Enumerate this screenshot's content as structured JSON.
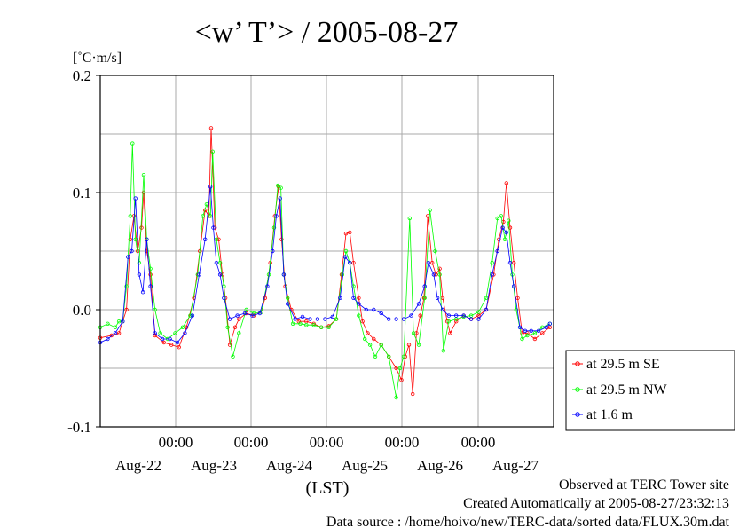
{
  "chart_data": {
    "type": "line",
    "title": "<w’ T’> / 2005-08-27",
    "ylabel": "[˚C·m/s]",
    "xlabel": "(LST)",
    "ylim": [
      -0.1,
      0.2
    ],
    "y_ticks": [
      "0.2",
      "0.1",
      "0.0",
      "-0.1"
    ],
    "x_time_ticks": [
      "00:00",
      "00:00",
      "00:00",
      "00:00",
      "00:00"
    ],
    "x_date_labels": [
      "Aug-22",
      "Aug-23",
      "Aug-24",
      "Aug-25",
      "Aug-26",
      "Aug-27"
    ],
    "x_unit": "day_offset_from_Aug-21_00:00_LST",
    "xlim": [
      1.05,
      7.1
    ],
    "grid": true,
    "legend_position": "right",
    "series": [
      {
        "name": "at 29.5 m SE",
        "color": "#ff0000",
        "points": [
          [
            1.05,
            -0.024
          ],
          [
            1.2,
            -0.022
          ],
          [
            1.3,
            -0.02
          ],
          [
            1.35,
            -0.01
          ],
          [
            1.4,
            0.0
          ],
          [
            1.45,
            0.06
          ],
          [
            1.5,
            0.08
          ],
          [
            1.55,
            0.05
          ],
          [
            1.6,
            0.07
          ],
          [
            1.63,
            0.1
          ],
          [
            1.67,
            0.05
          ],
          [
            1.72,
            0.03
          ],
          [
            1.78,
            -0.022
          ],
          [
            1.9,
            -0.028
          ],
          [
            2.0,
            -0.03
          ],
          [
            2.1,
            -0.032
          ],
          [
            2.2,
            -0.015
          ],
          [
            2.3,
            0.01
          ],
          [
            2.38,
            0.05
          ],
          [
            2.45,
            0.085
          ],
          [
            2.5,
            0.08
          ],
          [
            2.53,
            0.155
          ],
          [
            2.58,
            0.07
          ],
          [
            2.63,
            0.06
          ],
          [
            2.68,
            0.03
          ],
          [
            2.72,
            0.01
          ],
          [
            2.78,
            -0.03
          ],
          [
            2.85,
            -0.015
          ],
          [
            2.9,
            -0.008
          ],
          [
            3.0,
            -0.003
          ],
          [
            3.1,
            -0.005
          ],
          [
            3.2,
            -0.002
          ],
          [
            3.25,
            0.01
          ],
          [
            3.32,
            0.04
          ],
          [
            3.38,
            0.08
          ],
          [
            3.43,
            0.105
          ],
          [
            3.47,
            0.06
          ],
          [
            3.52,
            0.02
          ],
          [
            3.6,
            0.0
          ],
          [
            3.7,
            -0.01
          ],
          [
            3.8,
            -0.01
          ],
          [
            3.9,
            -0.012
          ],
          [
            4.0,
            -0.015
          ],
          [
            4.1,
            -0.014
          ],
          [
            4.2,
            -0.008
          ],
          [
            4.27,
            0.03
          ],
          [
            4.33,
            0.065
          ],
          [
            4.38,
            0.066
          ],
          [
            4.43,
            0.04
          ],
          [
            4.5,
            0.01
          ],
          [
            4.55,
            -0.01
          ],
          [
            4.62,
            -0.02
          ],
          [
            4.7,
            -0.025
          ],
          [
            4.8,
            -0.03
          ],
          [
            4.9,
            -0.04
          ],
          [
            5.0,
            -0.05
          ],
          [
            5.07,
            -0.06
          ],
          [
            5.12,
            -0.04
          ],
          [
            5.17,
            -0.03
          ],
          [
            5.22,
            -0.072
          ],
          [
            5.27,
            -0.02
          ],
          [
            5.32,
            -0.005
          ],
          [
            5.37,
            0.01
          ],
          [
            5.42,
            0.08
          ],
          [
            5.48,
            0.04
          ],
          [
            5.53,
            0.03
          ],
          [
            5.58,
            0.035
          ],
          [
            5.62,
            0.01
          ],
          [
            5.68,
            -0.01
          ],
          [
            5.72,
            -0.02
          ],
          [
            5.8,
            -0.01
          ],
          [
            5.9,
            -0.005
          ],
          [
            6.0,
            -0.008
          ],
          [
            6.1,
            -0.005
          ],
          [
            6.2,
            0.0
          ],
          [
            6.3,
            0.03
          ],
          [
            6.37,
            0.06
          ],
          [
            6.43,
            0.075
          ],
          [
            6.47,
            0.108
          ],
          [
            6.52,
            0.07
          ],
          [
            6.57,
            0.04
          ],
          [
            6.62,
            0.01
          ],
          [
            6.68,
            -0.02
          ],
          [
            6.75,
            -0.02
          ],
          [
            6.85,
            -0.025
          ],
          [
            6.95,
            -0.02
          ],
          [
            7.05,
            -0.015
          ]
        ]
      },
      {
        "name": "at 29.5 m NW",
        "color": "#00ff00",
        "points": [
          [
            1.05,
            -0.015
          ],
          [
            1.15,
            -0.012
          ],
          [
            1.25,
            -0.015
          ],
          [
            1.3,
            -0.01
          ],
          [
            1.35,
            -0.01
          ],
          [
            1.4,
            0.02
          ],
          [
            1.45,
            0.08
          ],
          [
            1.48,
            0.142
          ],
          [
            1.52,
            0.06
          ],
          [
            1.57,
            0.04
          ],
          [
            1.63,
            0.115
          ],
          [
            1.67,
            0.06
          ],
          [
            1.72,
            0.035
          ],
          [
            1.78,
            0.0
          ],
          [
            1.85,
            -0.02
          ],
          [
            1.95,
            -0.025
          ],
          [
            2.05,
            -0.02
          ],
          [
            2.15,
            -0.015
          ],
          [
            2.25,
            -0.005
          ],
          [
            2.35,
            0.03
          ],
          [
            2.42,
            0.08
          ],
          [
            2.47,
            0.09
          ],
          [
            2.52,
            0.08
          ],
          [
            2.55,
            0.135
          ],
          [
            2.6,
            0.06
          ],
          [
            2.65,
            0.04
          ],
          [
            2.7,
            0.02
          ],
          [
            2.75,
            -0.015
          ],
          [
            2.82,
            -0.04
          ],
          [
            2.9,
            -0.02
          ],
          [
            3.0,
            0.0
          ],
          [
            3.1,
            -0.003
          ],
          [
            3.2,
            -0.002
          ],
          [
            3.3,
            0.03
          ],
          [
            3.37,
            0.07
          ],
          [
            3.42,
            0.106
          ],
          [
            3.46,
            0.104
          ],
          [
            3.5,
            0.03
          ],
          [
            3.55,
            0.01
          ],
          [
            3.62,
            -0.012
          ],
          [
            3.72,
            -0.012
          ],
          [
            3.8,
            -0.013
          ],
          [
            3.9,
            -0.013
          ],
          [
            4.0,
            -0.015
          ],
          [
            4.1,
            -0.015
          ],
          [
            4.2,
            -0.008
          ],
          [
            4.28,
            0.03
          ],
          [
            4.33,
            0.05
          ],
          [
            4.38,
            0.04
          ],
          [
            4.43,
            0.02
          ],
          [
            4.5,
            -0.005
          ],
          [
            4.58,
            -0.025
          ],
          [
            4.65,
            -0.03
          ],
          [
            4.72,
            -0.04
          ],
          [
            4.8,
            -0.03
          ],
          [
            4.9,
            -0.04
          ],
          [
            5.0,
            -0.075
          ],
          [
            5.05,
            -0.05
          ],
          [
            5.1,
            -0.04
          ],
          [
            5.18,
            0.078
          ],
          [
            5.23,
            -0.02
          ],
          [
            5.3,
            -0.03
          ],
          [
            5.38,
            0.01
          ],
          [
            5.45,
            0.085
          ],
          [
            5.52,
            0.05
          ],
          [
            5.58,
            0.03
          ],
          [
            5.63,
            -0.035
          ],
          [
            5.7,
            -0.01
          ],
          [
            5.8,
            -0.008
          ],
          [
            5.9,
            -0.006
          ],
          [
            6.0,
            -0.005
          ],
          [
            6.1,
            -0.002
          ],
          [
            6.2,
            0.01
          ],
          [
            6.28,
            0.04
          ],
          [
            6.35,
            0.078
          ],
          [
            6.4,
            0.08
          ],
          [
            6.45,
            0.06
          ],
          [
            6.5,
            0.076
          ],
          [
            6.55,
            0.03
          ],
          [
            6.6,
            0.0
          ],
          [
            6.68,
            -0.025
          ],
          [
            6.75,
            -0.022
          ],
          [
            6.85,
            -0.02
          ],
          [
            6.95,
            -0.015
          ],
          [
            7.05,
            -0.012
          ]
        ]
      },
      {
        "name": "at 1.6 m",
        "color": "#0000ff",
        "points": [
          [
            1.05,
            -0.028
          ],
          [
            1.15,
            -0.025
          ],
          [
            1.25,
            -0.02
          ],
          [
            1.35,
            -0.01
          ],
          [
            1.42,
            0.045
          ],
          [
            1.47,
            0.05
          ],
          [
            1.52,
            0.095
          ],
          [
            1.57,
            0.03
          ],
          [
            1.62,
            0.015
          ],
          [
            1.67,
            0.06
          ],
          [
            1.72,
            0.02
          ],
          [
            1.78,
            -0.02
          ],
          [
            1.88,
            -0.025
          ],
          [
            1.98,
            -0.025
          ],
          [
            2.08,
            -0.028
          ],
          [
            2.18,
            -0.02
          ],
          [
            2.28,
            -0.005
          ],
          [
            2.37,
            0.03
          ],
          [
            2.45,
            0.06
          ],
          [
            2.52,
            0.105
          ],
          [
            2.56,
            0.07
          ],
          [
            2.6,
            0.04
          ],
          [
            2.65,
            0.03
          ],
          [
            2.7,
            0.01
          ],
          [
            2.78,
            -0.008
          ],
          [
            2.88,
            -0.005
          ],
          [
            2.98,
            -0.003
          ],
          [
            3.08,
            -0.005
          ],
          [
            3.18,
            -0.003
          ],
          [
            3.28,
            0.02
          ],
          [
            3.35,
            0.05
          ],
          [
            3.4,
            0.08
          ],
          [
            3.45,
            0.095
          ],
          [
            3.5,
            0.03
          ],
          [
            3.55,
            0.005
          ],
          [
            3.65,
            -0.008
          ],
          [
            3.75,
            -0.006
          ],
          [
            3.85,
            -0.008
          ],
          [
            3.95,
            -0.008
          ],
          [
            4.05,
            -0.008
          ],
          [
            4.15,
            -0.006
          ],
          [
            4.25,
            0.01
          ],
          [
            4.32,
            0.045
          ],
          [
            4.38,
            0.04
          ],
          [
            4.43,
            0.01
          ],
          [
            4.5,
            0.005
          ],
          [
            4.6,
            0.0
          ],
          [
            4.7,
            0.0
          ],
          [
            4.8,
            -0.003
          ],
          [
            4.9,
            -0.008
          ],
          [
            5.0,
            -0.008
          ],
          [
            5.1,
            -0.008
          ],
          [
            5.2,
            -0.005
          ],
          [
            5.3,
            0.005
          ],
          [
            5.38,
            0.02
          ],
          [
            5.43,
            0.04
          ],
          [
            5.5,
            0.03
          ],
          [
            5.55,
            0.01
          ],
          [
            5.62,
            0.0
          ],
          [
            5.7,
            -0.005
          ],
          [
            5.8,
            -0.005
          ],
          [
            5.9,
            -0.005
          ],
          [
            6.0,
            -0.008
          ],
          [
            6.1,
            -0.008
          ],
          [
            6.2,
            0.0
          ],
          [
            6.28,
            0.03
          ],
          [
            6.35,
            0.05
          ],
          [
            6.42,
            0.07
          ],
          [
            6.47,
            0.066
          ],
          [
            6.52,
            0.04
          ],
          [
            6.57,
            0.02
          ],
          [
            6.65,
            -0.015
          ],
          [
            6.72,
            -0.018
          ],
          [
            6.8,
            -0.018
          ],
          [
            6.9,
            -0.018
          ],
          [
            7.0,
            -0.015
          ],
          [
            7.05,
            -0.012
          ]
        ]
      }
    ]
  },
  "footer": {
    "line1": "Observed at TERC Tower site",
    "line2": "Created Automatically at 2005-08-27/23:32:13",
    "line3": "Data source : /home/hoivo/new/TERC-data/sorted  data/FLUX.30m.dat"
  }
}
